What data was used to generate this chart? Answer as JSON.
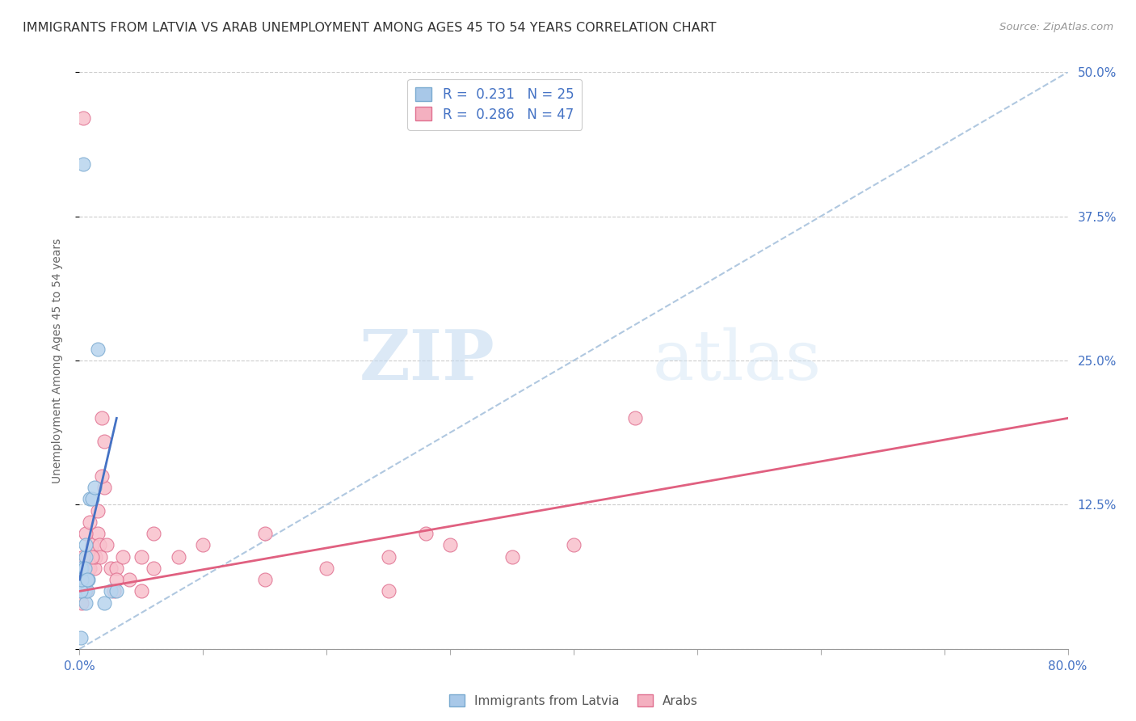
{
  "title": "IMMIGRANTS FROM LATVIA VS ARAB UNEMPLOYMENT AMONG AGES 45 TO 54 YEARS CORRELATION CHART",
  "source": "Source: ZipAtlas.com",
  "ylabel": "Unemployment Among Ages 45 to 54 years",
  "xlim": [
    0.0,
    0.8
  ],
  "ylim": [
    -0.02,
    0.52
  ],
  "plot_ylim": [
    0.0,
    0.5
  ],
  "legend_top": [
    {
      "label": "R =  0.231   N = 25",
      "color": "#a8c8e8",
      "edge": "#7aaad0"
    },
    {
      "label": "R =  0.286   N = 47",
      "color": "#f4b0c0",
      "edge": "#e07090"
    }
  ],
  "legend_bottom": [
    {
      "label": "Immigrants from Latvia",
      "color": "#a8c8e8",
      "edge": "#7aaad0"
    },
    {
      "label": "Arabs",
      "color": "#f4b0c0",
      "edge": "#e07090"
    }
  ],
  "scatter_latvia": {
    "color": "#b8d4ee",
    "edge_color": "#7aaad0",
    "x": [
      0.002,
      0.002,
      0.003,
      0.003,
      0.004,
      0.004,
      0.005,
      0.005,
      0.006,
      0.007,
      0.008,
      0.01,
      0.012,
      0.015,
      0.02,
      0.025,
      0.03,
      0.003,
      0.001,
      0.001,
      0.002,
      0.004,
      0.005,
      0.006,
      0.001
    ],
    "y": [
      0.05,
      0.07,
      0.05,
      0.06,
      0.06,
      0.05,
      0.04,
      0.08,
      0.05,
      0.06,
      0.13,
      0.13,
      0.14,
      0.26,
      0.04,
      0.05,
      0.05,
      0.42,
      0.05,
      0.07,
      0.06,
      0.07,
      0.09,
      0.06,
      0.01
    ]
  },
  "scatter_arab": {
    "color": "#f8c0cc",
    "edge_color": "#e07090",
    "x": [
      0.002,
      0.003,
      0.004,
      0.005,
      0.006,
      0.007,
      0.008,
      0.009,
      0.01,
      0.012,
      0.013,
      0.015,
      0.016,
      0.017,
      0.018,
      0.02,
      0.022,
      0.025,
      0.028,
      0.03,
      0.035,
      0.04,
      0.05,
      0.06,
      0.08,
      0.1,
      0.15,
      0.2,
      0.25,
      0.3,
      0.35,
      0.4,
      0.003,
      0.005,
      0.008,
      0.01,
      0.015,
      0.02,
      0.03,
      0.05,
      0.06,
      0.15,
      0.25,
      0.003,
      0.018,
      0.28,
      0.45
    ],
    "y": [
      0.04,
      0.05,
      0.06,
      0.05,
      0.06,
      0.07,
      0.07,
      0.08,
      0.09,
      0.07,
      0.08,
      0.1,
      0.09,
      0.08,
      0.2,
      0.14,
      0.09,
      0.07,
      0.05,
      0.07,
      0.08,
      0.06,
      0.05,
      0.07,
      0.08,
      0.09,
      0.06,
      0.07,
      0.08,
      0.09,
      0.08,
      0.09,
      0.46,
      0.1,
      0.11,
      0.08,
      0.12,
      0.18,
      0.06,
      0.08,
      0.1,
      0.1,
      0.05,
      0.08,
      0.15,
      0.1,
      0.2
    ]
  },
  "trend_latvia": {
    "color": "#4472c4",
    "x_start": 0.0,
    "x_end": 0.03,
    "y_start": 0.06,
    "y_end": 0.2
  },
  "trend_arab": {
    "color": "#e06080",
    "x_start": 0.0,
    "x_end": 0.8,
    "y_start": 0.05,
    "y_end": 0.2
  },
  "diagonal_line": {
    "x_start": 0.0,
    "x_end": 0.8,
    "y_start": 0.0,
    "y_end": 0.5,
    "color": "#b0c8e0",
    "linestyle": "--"
  },
  "grid_yticks": [
    0.0,
    0.125,
    0.25,
    0.375,
    0.5
  ],
  "right_ytick_labels": [
    "",
    "12.5%",
    "25.0%",
    "37.5%",
    "50.0%"
  ],
  "xtick_positions": [
    0.0,
    0.1,
    0.2,
    0.3,
    0.4,
    0.5,
    0.6,
    0.7,
    0.8
  ],
  "background_color": "#ffffff",
  "grid_color": "#cccccc",
  "title_color": "#333333",
  "axis_tick_color": "#4472c4",
  "title_fontsize": 11.5,
  "label_fontsize": 10,
  "tick_fontsize": 11,
  "source_fontsize": 9.5
}
